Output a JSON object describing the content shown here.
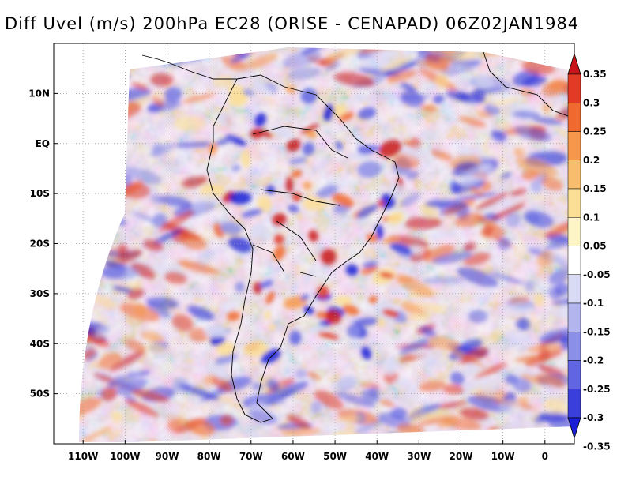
{
  "title": "Diff Uvel (m/s) 200hPa EC28 (ORISE - CENAPAD) 06Z02JAN1984",
  "chart_data": {
    "type": "heatmap",
    "variable": "Diff Uvel",
    "units": "m/s",
    "level": "200hPa",
    "experiment": "EC28 (ORISE - CENAPAD)",
    "time": "06Z02JAN1984",
    "x_ticks": [
      "110W",
      "100W",
      "90W",
      "80W",
      "70W",
      "60W",
      "50W",
      "40W",
      "30W",
      "20W",
      "10W",
      "0"
    ],
    "x_tick_values": [
      -110,
      -100,
      -90,
      -80,
      -70,
      -60,
      -50,
      -40,
      -30,
      -20,
      -10,
      0
    ],
    "y_ticks": [
      "10N",
      "EQ",
      "10S",
      "20S",
      "30S",
      "40S",
      "50S"
    ],
    "y_tick_values": [
      10,
      0,
      -10,
      -20,
      -30,
      -40,
      -50
    ],
    "xlim": [
      -117,
      7
    ],
    "ylim": [
      -60,
      20
    ],
    "grid": true,
    "colorbar": {
      "placement": "right",
      "labels": [
        "0.35",
        "0.3",
        "0.25",
        "0.2",
        "0.15",
        "0.1",
        "0.05",
        "-0.05",
        "-0.1",
        "-0.15",
        "-0.2",
        "-0.25",
        "-0.3",
        "-0.35"
      ],
      "colors": [
        "#c8141b",
        "#e23a24",
        "#f06a30",
        "#f7974b",
        "#f9bd6e",
        "#fbdf95",
        "#fdf5c5",
        "#ffffff",
        "#d9dbf5",
        "#b3b5ef",
        "#8c8fe8",
        "#6165e2",
        "#3a3fdb",
        "#1a1fd6"
      ]
    }
  },
  "colors": {
    "positive_strong": "#c8141b",
    "negative_strong": "#1a1fd6",
    "coast": "#000000",
    "grid": "#9a9a9a"
  }
}
